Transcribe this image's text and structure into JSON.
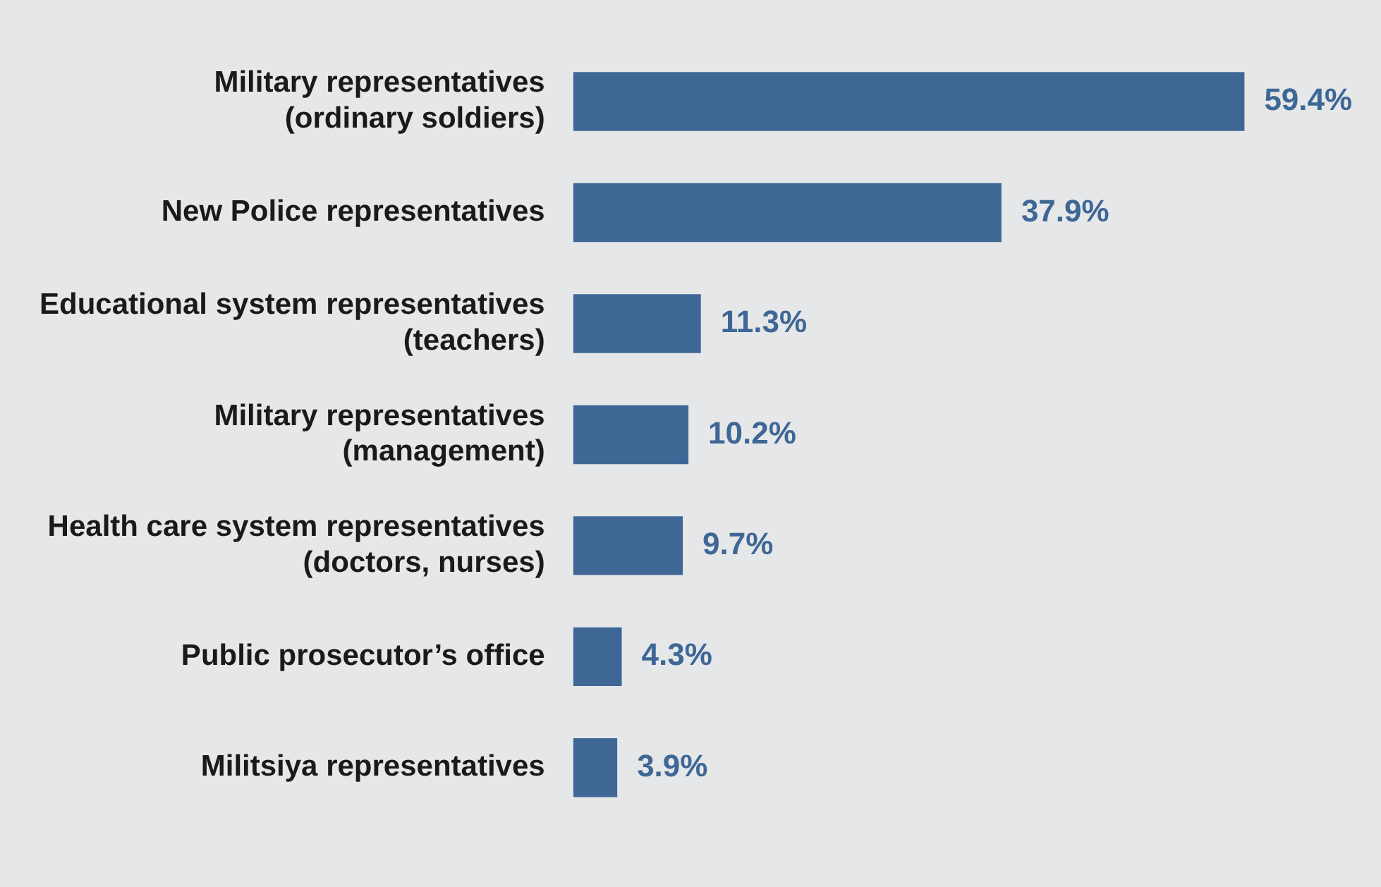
{
  "chart_data": {
    "type": "bar",
    "orientation": "horizontal",
    "categories": [
      "Military representatives\n(ordinary soldiers)",
      "New Police representatives",
      "Educational system representatives\n(teachers)",
      "Military representatives\n(management)",
      "Health care system representatives\n(doctors, nurses)",
      "Public prosecutor’s office",
      "Militsiya representatives"
    ],
    "values": [
      59.4,
      37.9,
      11.3,
      10.2,
      9.7,
      4.3,
      3.9
    ],
    "value_labels": [
      "59.4%",
      "37.9%",
      "11.3%",
      "10.2%",
      "9.7%",
      "4.3%",
      "3.9%"
    ],
    "color": "#3e6796",
    "tick_labels": "y"
  }
}
